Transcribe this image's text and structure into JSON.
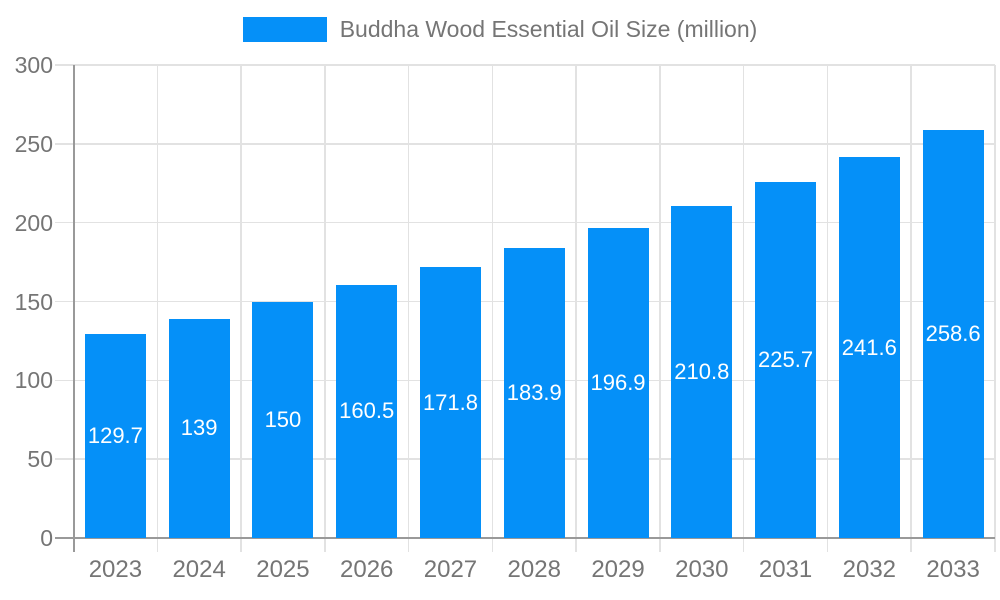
{
  "chart_data": {
    "type": "bar",
    "title": "",
    "legend_label": "Buddha Wood Essential Oil Size (million)",
    "legend_position": "top",
    "categories": [
      "2023",
      "2024",
      "2025",
      "2026",
      "2027",
      "2028",
      "2029",
      "2030",
      "2031",
      "2032",
      "2033"
    ],
    "values": [
      129.7,
      139,
      150,
      160.5,
      171.8,
      183.9,
      196.9,
      210.8,
      225.7,
      241.6,
      258.6
    ],
    "xlabel": "",
    "ylabel": "",
    "ylim": [
      0,
      300
    ],
    "yticks": [
      0,
      50,
      100,
      150,
      200,
      250,
      300
    ],
    "grid": true,
    "colors": {
      "bar": "#0590f8",
      "value_label": "#ffffff",
      "axis_text": "#757575",
      "axis_line": "#999999",
      "gridline": "#e2e2e2",
      "background": "#ffffff"
    }
  }
}
